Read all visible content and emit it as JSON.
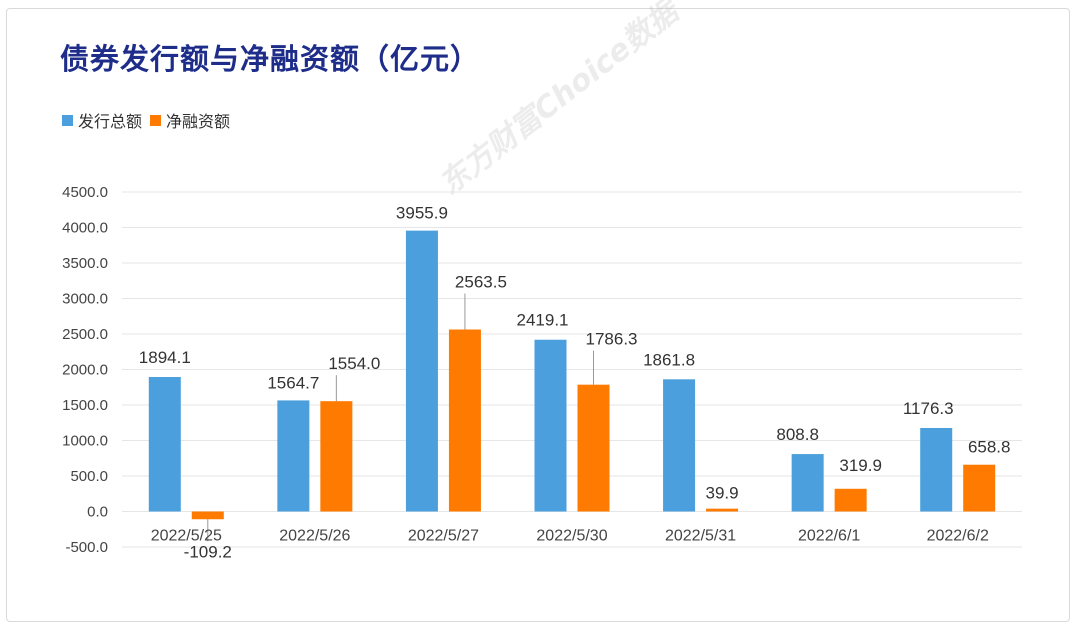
{
  "title": "债券发行额与净融资额（亿元）",
  "watermark": "东方财富Choice数据",
  "colors": {
    "issuance": "#4a9fdc",
    "net": "#ff7a00",
    "title": "#1f2d8a",
    "grid": "#e6e6e6"
  },
  "chart_data": {
    "type": "bar",
    "title": "债券发行额与净融资额（亿元）",
    "categories": [
      "2022/5/25",
      "2022/5/26",
      "2022/5/27",
      "2022/5/30",
      "2022/5/31",
      "2022/6/1",
      "2022/6/2"
    ],
    "series": [
      {
        "name": "发行总额",
        "values": [
          1894.1,
          1564.7,
          3955.9,
          2419.1,
          1861.8,
          808.8,
          1176.3
        ]
      },
      {
        "name": "净融资额",
        "values": [
          -109.2,
          1554.0,
          2563.5,
          1786.3,
          39.9,
          319.9,
          658.8
        ]
      }
    ],
    "ylim": [
      -500,
      4500
    ],
    "yticks": [
      "4500.0",
      "4000.0",
      "3500.0",
      "3000.0",
      "2500.0",
      "2000.0",
      "1500.0",
      "1000.0",
      "500.0",
      "0.0",
      "-500.0"
    ],
    "grid": true,
    "legend": "top-left",
    "xlabel": "",
    "ylabel": ""
  }
}
